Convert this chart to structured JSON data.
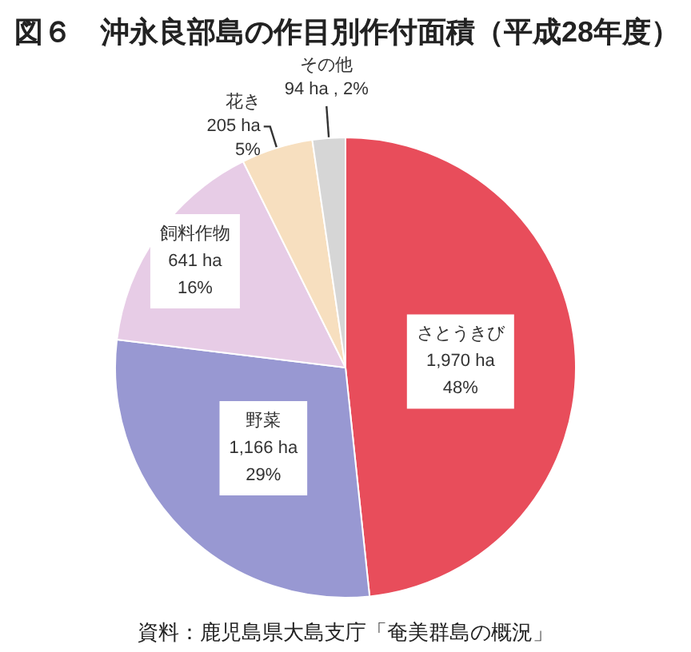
{
  "chart_data": {
    "type": "pie",
    "title": "図６　沖永良部島の作目別作付面積（平成28年度）",
    "categories": [
      "さとうきび",
      "野菜",
      "飼料作物",
      "花き",
      "その他"
    ],
    "values": [
      1970,
      1166,
      641,
      205,
      94
    ],
    "colors": [
      "#e84d5b",
      "#9898d2",
      "#e7cce6",
      "#f7dfbf",
      "#d6d6d6"
    ],
    "value_labels": [
      "1,970 ha\n48%",
      "1,166 ha\n29%",
      "641 ha\n16%",
      "205 ha\n5%",
      "94 ha , 2%"
    ],
    "annotations": [
      "資料：鹿児島県大島支庁「奄美群島の概況」"
    ]
  }
}
